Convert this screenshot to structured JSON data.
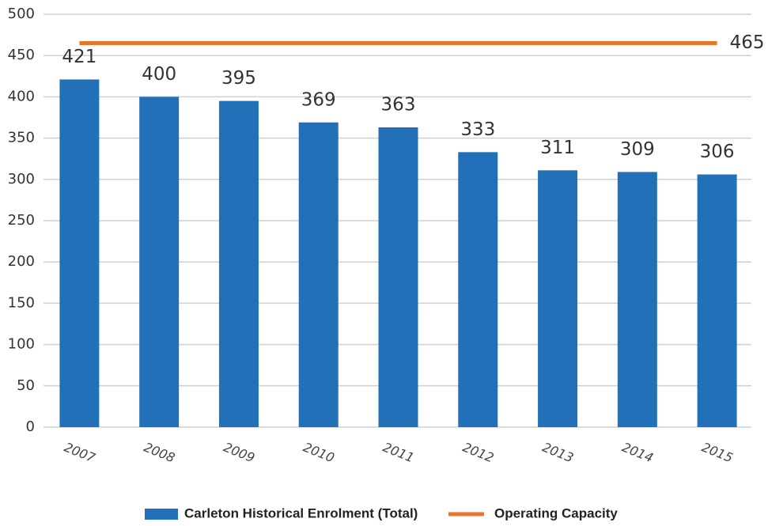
{
  "chart_data": {
    "type": "bar",
    "categories": [
      "2007",
      "2008",
      "2009",
      "2010",
      "2011",
      "2012",
      "2013",
      "2014",
      "2015"
    ],
    "series": [
      {
        "name": "Carleton Historical Enrolment (Total)",
        "type": "bar",
        "color": "#2271b8",
        "values": [
          421,
          400,
          395,
          369,
          363,
          333,
          311,
          309,
          306
        ]
      },
      {
        "name": "Operating Capacity",
        "type": "line",
        "color": "#e8772e",
        "values": [
          465,
          465,
          465,
          465,
          465,
          465,
          465,
          465,
          465
        ]
      }
    ],
    "ylim": [
      0,
      500
    ],
    "yticks": [
      0,
      50,
      100,
      150,
      200,
      250,
      300,
      350,
      400,
      450,
      500
    ],
    "grid": true,
    "legend": "bottom"
  }
}
